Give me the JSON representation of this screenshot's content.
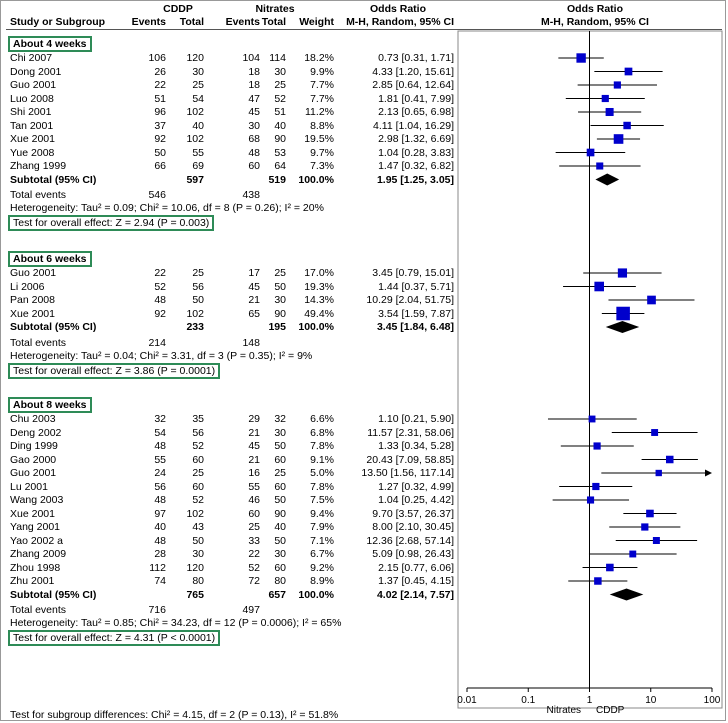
{
  "header": {
    "cddp": "CDDP",
    "nitrates": "Nitrates",
    "odds_ratio": "Odds Ratio",
    "odds_ratio_plot": "Odds Ratio",
    "study": "Study or Subgroup",
    "events": "Events",
    "total": "Total",
    "weight": "Weight",
    "method": "M-H, Random, 95% CI",
    "method_plot": "M-H, Random, 95% CI"
  },
  "groups": [
    {
      "title": "About 4 weeks",
      "studies": [
        {
          "name": "Chi 2007",
          "e1": "106",
          "t1": "120",
          "e2": "104",
          "t2": "114",
          "w": "18.2%",
          "ci": "0.73 [0.31, 1.71]"
        },
        {
          "name": "Dong 2001",
          "e1": "26",
          "t1": "30",
          "e2": "18",
          "t2": "30",
          "w": "9.9%",
          "ci": "4.33 [1.20, 15.61]"
        },
        {
          "name": "Guo 2001",
          "e1": "22",
          "t1": "25",
          "e2": "18",
          "t2": "25",
          "w": "7.7%",
          "ci": "2.85 [0.64, 12.64]"
        },
        {
          "name": "Luo 2008",
          "e1": "51",
          "t1": "54",
          "e2": "47",
          "t2": "52",
          "w": "7.7%",
          "ci": "1.81 [0.41, 7.99]"
        },
        {
          "name": "Shi 2001",
          "e1": "96",
          "t1": "102",
          "e2": "45",
          "t2": "51",
          "w": "11.2%",
          "ci": "2.13 [0.65, 6.98]"
        },
        {
          "name": "Tan 2001",
          "e1": "37",
          "t1": "40",
          "e2": "30",
          "t2": "40",
          "w": "8.8%",
          "ci": "4.11 [1.04, 16.29]"
        },
        {
          "name": "Xue 2001",
          "e1": "92",
          "t1": "102",
          "e2": "68",
          "t2": "90",
          "w": "19.5%",
          "ci": "2.98 [1.32, 6.69]"
        },
        {
          "name": "Yue 2008",
          "e1": "50",
          "t1": "55",
          "e2": "48",
          "t2": "53",
          "w": "9.7%",
          "ci": "1.04 [0.28, 3.83]"
        },
        {
          "name": "Zhang 1999",
          "e1": "66",
          "t1": "69",
          "e2": "60",
          "t2": "64",
          "w": "7.3%",
          "ci": "1.47 [0.32, 6.82]"
        }
      ],
      "subtotal": {
        "label": "Subtotal (95% CI)",
        "t1": "597",
        "t2": "519",
        "w": "100.0%",
        "ci": "1.95 [1.25, 3.05]"
      },
      "total_events": {
        "label": "Total events",
        "e1": "546",
        "e2": "438"
      },
      "heterogeneity": "Heterogeneity: Tau² = 0.09; Chi² = 10.06, df = 8 (P = 0.26); I² = 20%",
      "overall": "Test for overall effect: Z = 2.94 (P = 0.003)"
    },
    {
      "title": "About 6 weeks",
      "studies": [
        {
          "name": "Guo 2001",
          "e1": "22",
          "t1": "25",
          "e2": "17",
          "t2": "25",
          "w": "17.0%",
          "ci": "3.45 [0.79, 15.01]"
        },
        {
          "name": "Li 2006",
          "e1": "52",
          "t1": "56",
          "e2": "45",
          "t2": "50",
          "w": "19.3%",
          "ci": "1.44 [0.37, 5.71]"
        },
        {
          "name": "Pan 2008",
          "e1": "48",
          "t1": "50",
          "e2": "21",
          "t2": "30",
          "w": "14.3%",
          "ci": "10.29 [2.04, 51.75]"
        },
        {
          "name": "Xue 2001",
          "e1": "92",
          "t1": "102",
          "e2": "65",
          "t2": "90",
          "w": "49.4%",
          "ci": "3.54 [1.59, 7.87]"
        }
      ],
      "subtotal": {
        "label": "Subtotal (95% CI)",
        "t1": "233",
        "t2": "195",
        "w": "100.0%",
        "ci": "3.45 [1.84, 6.48]"
      },
      "total_events": {
        "label": "Total events",
        "e1": "214",
        "e2": "148"
      },
      "heterogeneity": "Heterogeneity: Tau² = 0.04; Chi² = 3.31, df = 3 (P = 0.35); I² = 9%",
      "overall": "Test for overall effect: Z = 3.86 (P = 0.0001)"
    },
    {
      "title": "About 8 weeks",
      "studies": [
        {
          "name": "Chu 2003",
          "e1": "32",
          "t1": "35",
          "e2": "29",
          "t2": "32",
          "w": "6.6%",
          "ci": "1.10 [0.21, 5.90]"
        },
        {
          "name": "Deng 2002",
          "e1": "54",
          "t1": "56",
          "e2": "21",
          "t2": "30",
          "w": "6.8%",
          "ci": "11.57 [2.31, 58.06]"
        },
        {
          "name": "Ding 1999",
          "e1": "48",
          "t1": "52",
          "e2": "45",
          "t2": "50",
          "w": "7.8%",
          "ci": "1.33 [0.34, 5.28]"
        },
        {
          "name": "Gao 2000",
          "e1": "55",
          "t1": "60",
          "e2": "21",
          "t2": "60",
          "w": "9.1%",
          "ci": "20.43 [7.09, 58.85]"
        },
        {
          "name": "Guo 2001",
          "e1": "24",
          "t1": "25",
          "e2": "16",
          "t2": "25",
          "w": "5.0%",
          "ci": "13.50 [1.56, 117.14]"
        },
        {
          "name": "Lu 2001",
          "e1": "56",
          "t1": "60",
          "e2": "55",
          "t2": "60",
          "w": "7.8%",
          "ci": "1.27 [0.32, 4.99]"
        },
        {
          "name": "Wang 2003",
          "e1": "48",
          "t1": "52",
          "e2": "46",
          "t2": "50",
          "w": "7.5%",
          "ci": "1.04 [0.25, 4.42]"
        },
        {
          "name": "Xue 2001",
          "e1": "97",
          "t1": "102",
          "e2": "60",
          "t2": "90",
          "w": "9.4%",
          "ci": "9.70 [3.57, 26.37]"
        },
        {
          "name": "Yang 2001",
          "e1": "40",
          "t1": "43",
          "e2": "25",
          "t2": "40",
          "w": "7.9%",
          "ci": "8.00 [2.10, 30.45]"
        },
        {
          "name": "Yao 2002 a",
          "e1": "48",
          "t1": "50",
          "e2": "33",
          "t2": "50",
          "w": "7.1%",
          "ci": "12.36 [2.68, 57.14]"
        },
        {
          "name": "Zhang 2009",
          "e1": "28",
          "t1": "30",
          "e2": "22",
          "t2": "30",
          "w": "6.7%",
          "ci": "5.09 [0.98, 26.43]"
        },
        {
          "name": "Zhou 1998",
          "e1": "112",
          "t1": "120",
          "e2": "52",
          "t2": "60",
          "w": "9.2%",
          "ci": "2.15 [0.77, 6.06]"
        },
        {
          "name": "Zhu 2001",
          "e1": "74",
          "t1": "80",
          "e2": "72",
          "t2": "80",
          "w": "8.9%",
          "ci": "1.37 [0.45, 4.15]"
        }
      ],
      "subtotal": {
        "label": "Subtotal (95% CI)",
        "t1": "765",
        "t2": "657",
        "w": "100.0%",
        "ci": "4.02 [2.14, 7.57]"
      },
      "total_events": {
        "label": "Total events",
        "e1": "716",
        "e2": "497"
      },
      "heterogeneity": "Heterogeneity: Tau² = 0.85; Chi² = 34.23, df = 12 (P = 0.0006); I² = 65%",
      "overall": "Test for overall effect: Z = 4.31 (P < 0.0001)"
    }
  ],
  "footer": {
    "subgroup_test": "Test for subgroup differences: Chi² = 4.15, df = 2 (P = 0.13), I² = 51.8%",
    "favours_left": "Nitrates",
    "favours_right": "CDDP"
  },
  "chart_data": {
    "type": "forest",
    "xscale": "log",
    "xlim": [
      0.01,
      100
    ],
    "xticks": [
      0.01,
      0.1,
      1,
      10,
      100
    ],
    "xtick_labels": [
      "0.01",
      "0.1",
      "1",
      "10",
      "100"
    ],
    "reference_line": 1,
    "colors": {
      "box": "#0000cc",
      "diamond": "#000000",
      "group_border": "#2e8b57"
    },
    "studies": [
      {
        "label": "Chi 2007",
        "group": "About 4 weeks",
        "or": 0.73,
        "lo": 0.31,
        "hi": 1.71,
        "weight": 18.2
      },
      {
        "label": "Dong 2001",
        "group": "About 4 weeks",
        "or": 4.33,
        "lo": 1.2,
        "hi": 15.61,
        "weight": 9.9
      },
      {
        "label": "Guo 2001",
        "group": "About 4 weeks",
        "or": 2.85,
        "lo": 0.64,
        "hi": 12.64,
        "weight": 7.7
      },
      {
        "label": "Luo 2008",
        "group": "About 4 weeks",
        "or": 1.81,
        "lo": 0.41,
        "hi": 7.99,
        "weight": 7.7
      },
      {
        "label": "Shi 2001",
        "group": "About 4 weeks",
        "or": 2.13,
        "lo": 0.65,
        "hi": 6.98,
        "weight": 11.2
      },
      {
        "label": "Tan 2001",
        "group": "About 4 weeks",
        "or": 4.11,
        "lo": 1.04,
        "hi": 16.29,
        "weight": 8.8
      },
      {
        "label": "Xue 2001",
        "group": "About 4 weeks",
        "or": 2.98,
        "lo": 1.32,
        "hi": 6.69,
        "weight": 19.5
      },
      {
        "label": "Yue 2008",
        "group": "About 4 weeks",
        "or": 1.04,
        "lo": 0.28,
        "hi": 3.83,
        "weight": 9.7
      },
      {
        "label": "Zhang 1999",
        "group": "About 4 weeks",
        "or": 1.47,
        "lo": 0.32,
        "hi": 6.82,
        "weight": 7.3
      },
      {
        "label": "Guo 2001",
        "group": "About 6 weeks",
        "or": 3.45,
        "lo": 0.79,
        "hi": 15.01,
        "weight": 17.0
      },
      {
        "label": "Li 2006",
        "group": "About 6 weeks",
        "or": 1.44,
        "lo": 0.37,
        "hi": 5.71,
        "weight": 19.3
      },
      {
        "label": "Pan 2008",
        "group": "About 6 weeks",
        "or": 10.29,
        "lo": 2.04,
        "hi": 51.75,
        "weight": 14.3
      },
      {
        "label": "Xue 2001",
        "group": "About 6 weeks",
        "or": 3.54,
        "lo": 1.59,
        "hi": 7.87,
        "weight": 49.4
      },
      {
        "label": "Chu 2003",
        "group": "About 8 weeks",
        "or": 1.1,
        "lo": 0.21,
        "hi": 5.9,
        "weight": 6.6
      },
      {
        "label": "Deng 2002",
        "group": "About 8 weeks",
        "or": 11.57,
        "lo": 2.31,
        "hi": 58.06,
        "weight": 6.8
      },
      {
        "label": "Ding 1999",
        "group": "About 8 weeks",
        "or": 1.33,
        "lo": 0.34,
        "hi": 5.28,
        "weight": 7.8
      },
      {
        "label": "Gao 2000",
        "group": "About 8 weeks",
        "or": 20.43,
        "lo": 7.09,
        "hi": 58.85,
        "weight": 9.1
      },
      {
        "label": "Guo 2001",
        "group": "About 8 weeks",
        "or": 13.5,
        "lo": 1.56,
        "hi": 117.14,
        "weight": 5.0
      },
      {
        "label": "Lu 2001",
        "group": "About 8 weeks",
        "or": 1.27,
        "lo": 0.32,
        "hi": 4.99,
        "weight": 7.8
      },
      {
        "label": "Wang 2003",
        "group": "About 8 weeks",
        "or": 1.04,
        "lo": 0.25,
        "hi": 4.42,
        "weight": 7.5
      },
      {
        "label": "Xue 2001",
        "group": "About 8 weeks",
        "or": 9.7,
        "lo": 3.57,
        "hi": 26.37,
        "weight": 9.4
      },
      {
        "label": "Yang 2001",
        "group": "About 8 weeks",
        "or": 8.0,
        "lo": 2.1,
        "hi": 30.45,
        "weight": 7.9
      },
      {
        "label": "Yao 2002 a",
        "group": "About 8 weeks",
        "or": 12.36,
        "lo": 2.68,
        "hi": 57.14,
        "weight": 7.1
      },
      {
        "label": "Zhang 2009",
        "group": "About 8 weeks",
        "or": 5.09,
        "lo": 0.98,
        "hi": 26.43,
        "weight": 6.7
      },
      {
        "label": "Zhou 1998",
        "group": "About 8 weeks",
        "or": 2.15,
        "lo": 0.77,
        "hi": 6.06,
        "weight": 9.2
      },
      {
        "label": "Zhu 2001",
        "group": "About 8 weeks",
        "or": 1.37,
        "lo": 0.45,
        "hi": 4.15,
        "weight": 8.9
      }
    ],
    "subtotals": [
      {
        "group": "About 4 weeks",
        "or": 1.95,
        "lo": 1.25,
        "hi": 3.05
      },
      {
        "group": "About 6 weeks",
        "or": 3.45,
        "lo": 1.84,
        "hi": 6.48
      },
      {
        "group": "About 8 weeks",
        "or": 4.02,
        "lo": 2.14,
        "hi": 7.57
      }
    ]
  }
}
